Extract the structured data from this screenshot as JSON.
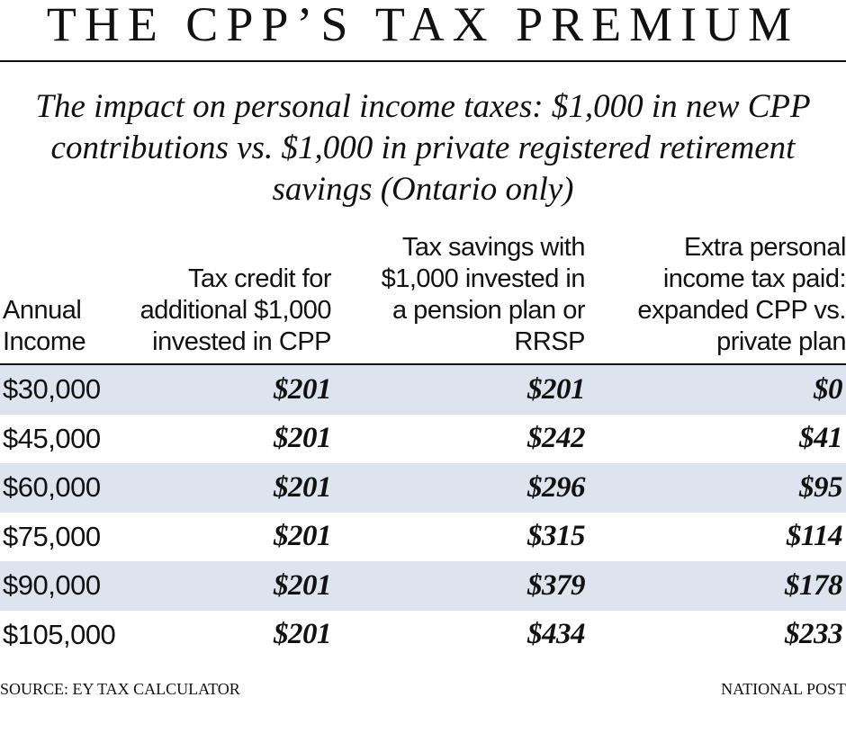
{
  "header": {
    "title": "THE CPP’S TAX PREMIUM",
    "subtitle": "The impact on personal income taxes: $1,000 in new CPP contributions vs. $1,000 in private registered retirement savings (Ontario only)"
  },
  "table": {
    "columns": [
      "Annual Income",
      "Tax credit for additional $1,000 invested in CPP",
      "Tax savings with $1,000 invested in a pension plan or RRSP",
      "Extra personal income tax paid: expanded CPP vs. private plan"
    ],
    "rows": [
      [
        "$30,000",
        "$201",
        "$201",
        "$0"
      ],
      [
        "$45,000",
        "$201",
        "$242",
        "$41"
      ],
      [
        "$60,000",
        "$201",
        "$296",
        "$95"
      ],
      [
        "$75,000",
        "$201",
        "$315",
        "$114"
      ],
      [
        "$90,000",
        "$201",
        "$379",
        "$178"
      ],
      [
        "$105,000",
        "$201",
        "$434",
        "$233"
      ]
    ]
  },
  "footer": {
    "source": "SOURCE: EY TAX CALCULATOR",
    "credit": "NATIONAL POST"
  }
}
